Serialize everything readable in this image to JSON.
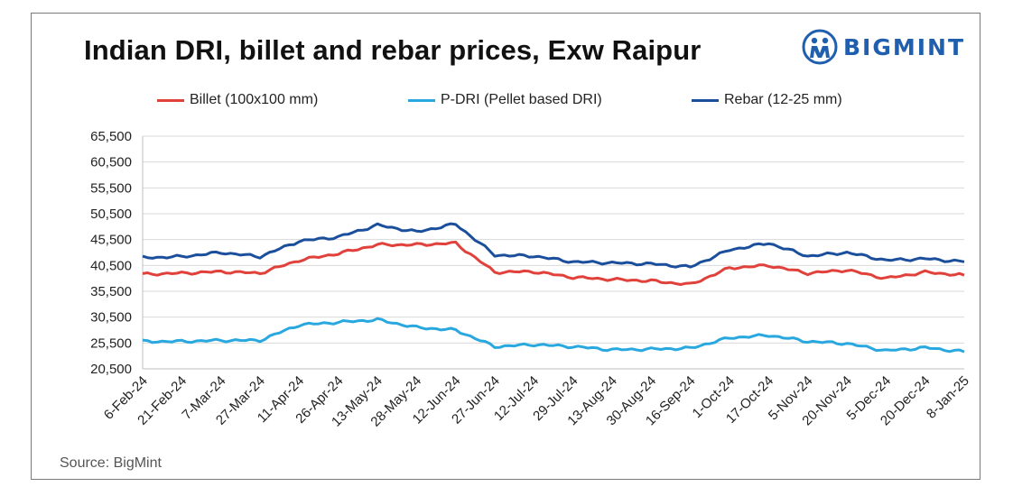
{
  "header": {
    "title": "Indian DRI, billet and rebar prices, Exw Raipur",
    "logo_text": "BIGMINT"
  },
  "footer": {
    "source": "Source: BigMint"
  },
  "colors": {
    "billet": "#e0413b",
    "pdri": "#29a8e0",
    "rebar": "#1b4f9c",
    "logo": "#1f5fae",
    "grid": "#d9d9d9"
  },
  "chart_data": {
    "type": "line",
    "title": "Indian DRI, billet and rebar prices, Exw Raipur",
    "xlabel": "",
    "ylabel": "",
    "ylim": [
      20500,
      65500
    ],
    "y_ticks": [
      "65,500",
      "60,500",
      "55,500",
      "50,500",
      "45,500",
      "40,500",
      "35,500",
      "30,500",
      "25,500",
      "20,500"
    ],
    "y_tick_values": [
      65500,
      60500,
      55500,
      50500,
      45500,
      40500,
      35500,
      30500,
      25500,
      20500
    ],
    "grid": true,
    "legend_position": "top",
    "x": [
      "6-Feb-24",
      "21-Feb-24",
      "7-Mar-24",
      "27-Mar-24",
      "11-Apr-24",
      "26-Apr-24",
      "13-May-24",
      "28-May-24",
      "12-Jun-24",
      "27-Jun-24",
      "12-Jul-24",
      "29-Jul-24",
      "13-Aug-24",
      "30-Aug-24",
      "16-Sep-24",
      "1-Oct-24",
      "17-Oct-24",
      "5-Nov-24",
      "20-Nov-24",
      "5-Dec-24",
      "20-Dec-24",
      "8-Jan-25"
    ],
    "series": [
      {
        "name": "Billet (100x100 mm)",
        "color": "#e0413b",
        "values": [
          38800,
          39000,
          39300,
          39000,
          41500,
          42800,
          44500,
          44500,
          44800,
          39200,
          39300,
          38200,
          37800,
          37500,
          36800,
          40000,
          40500,
          39000,
          39600,
          38000,
          39200,
          38600
        ]
      },
      {
        "name": "P-DRI (Pellet based DRI)",
        "color": "#29a8e0",
        "values": [
          25800,
          25800,
          26000,
          26000,
          29000,
          29500,
          30000,
          28500,
          28000,
          24800,
          25200,
          24800,
          24200,
          24300,
          24500,
          26500,
          27000,
          25800,
          25400,
          24000,
          24600,
          23800
        ]
      },
      {
        "name": "Rebar (12-25 mm)",
        "color": "#1b4f9c",
        "values": [
          42000,
          42200,
          43000,
          42200,
          45200,
          46000,
          48300,
          47000,
          48500,
          42500,
          42300,
          41200,
          41000,
          40800,
          40200,
          43500,
          44800,
          42300,
          43000,
          41500,
          41800,
          41200
        ]
      }
    ]
  }
}
